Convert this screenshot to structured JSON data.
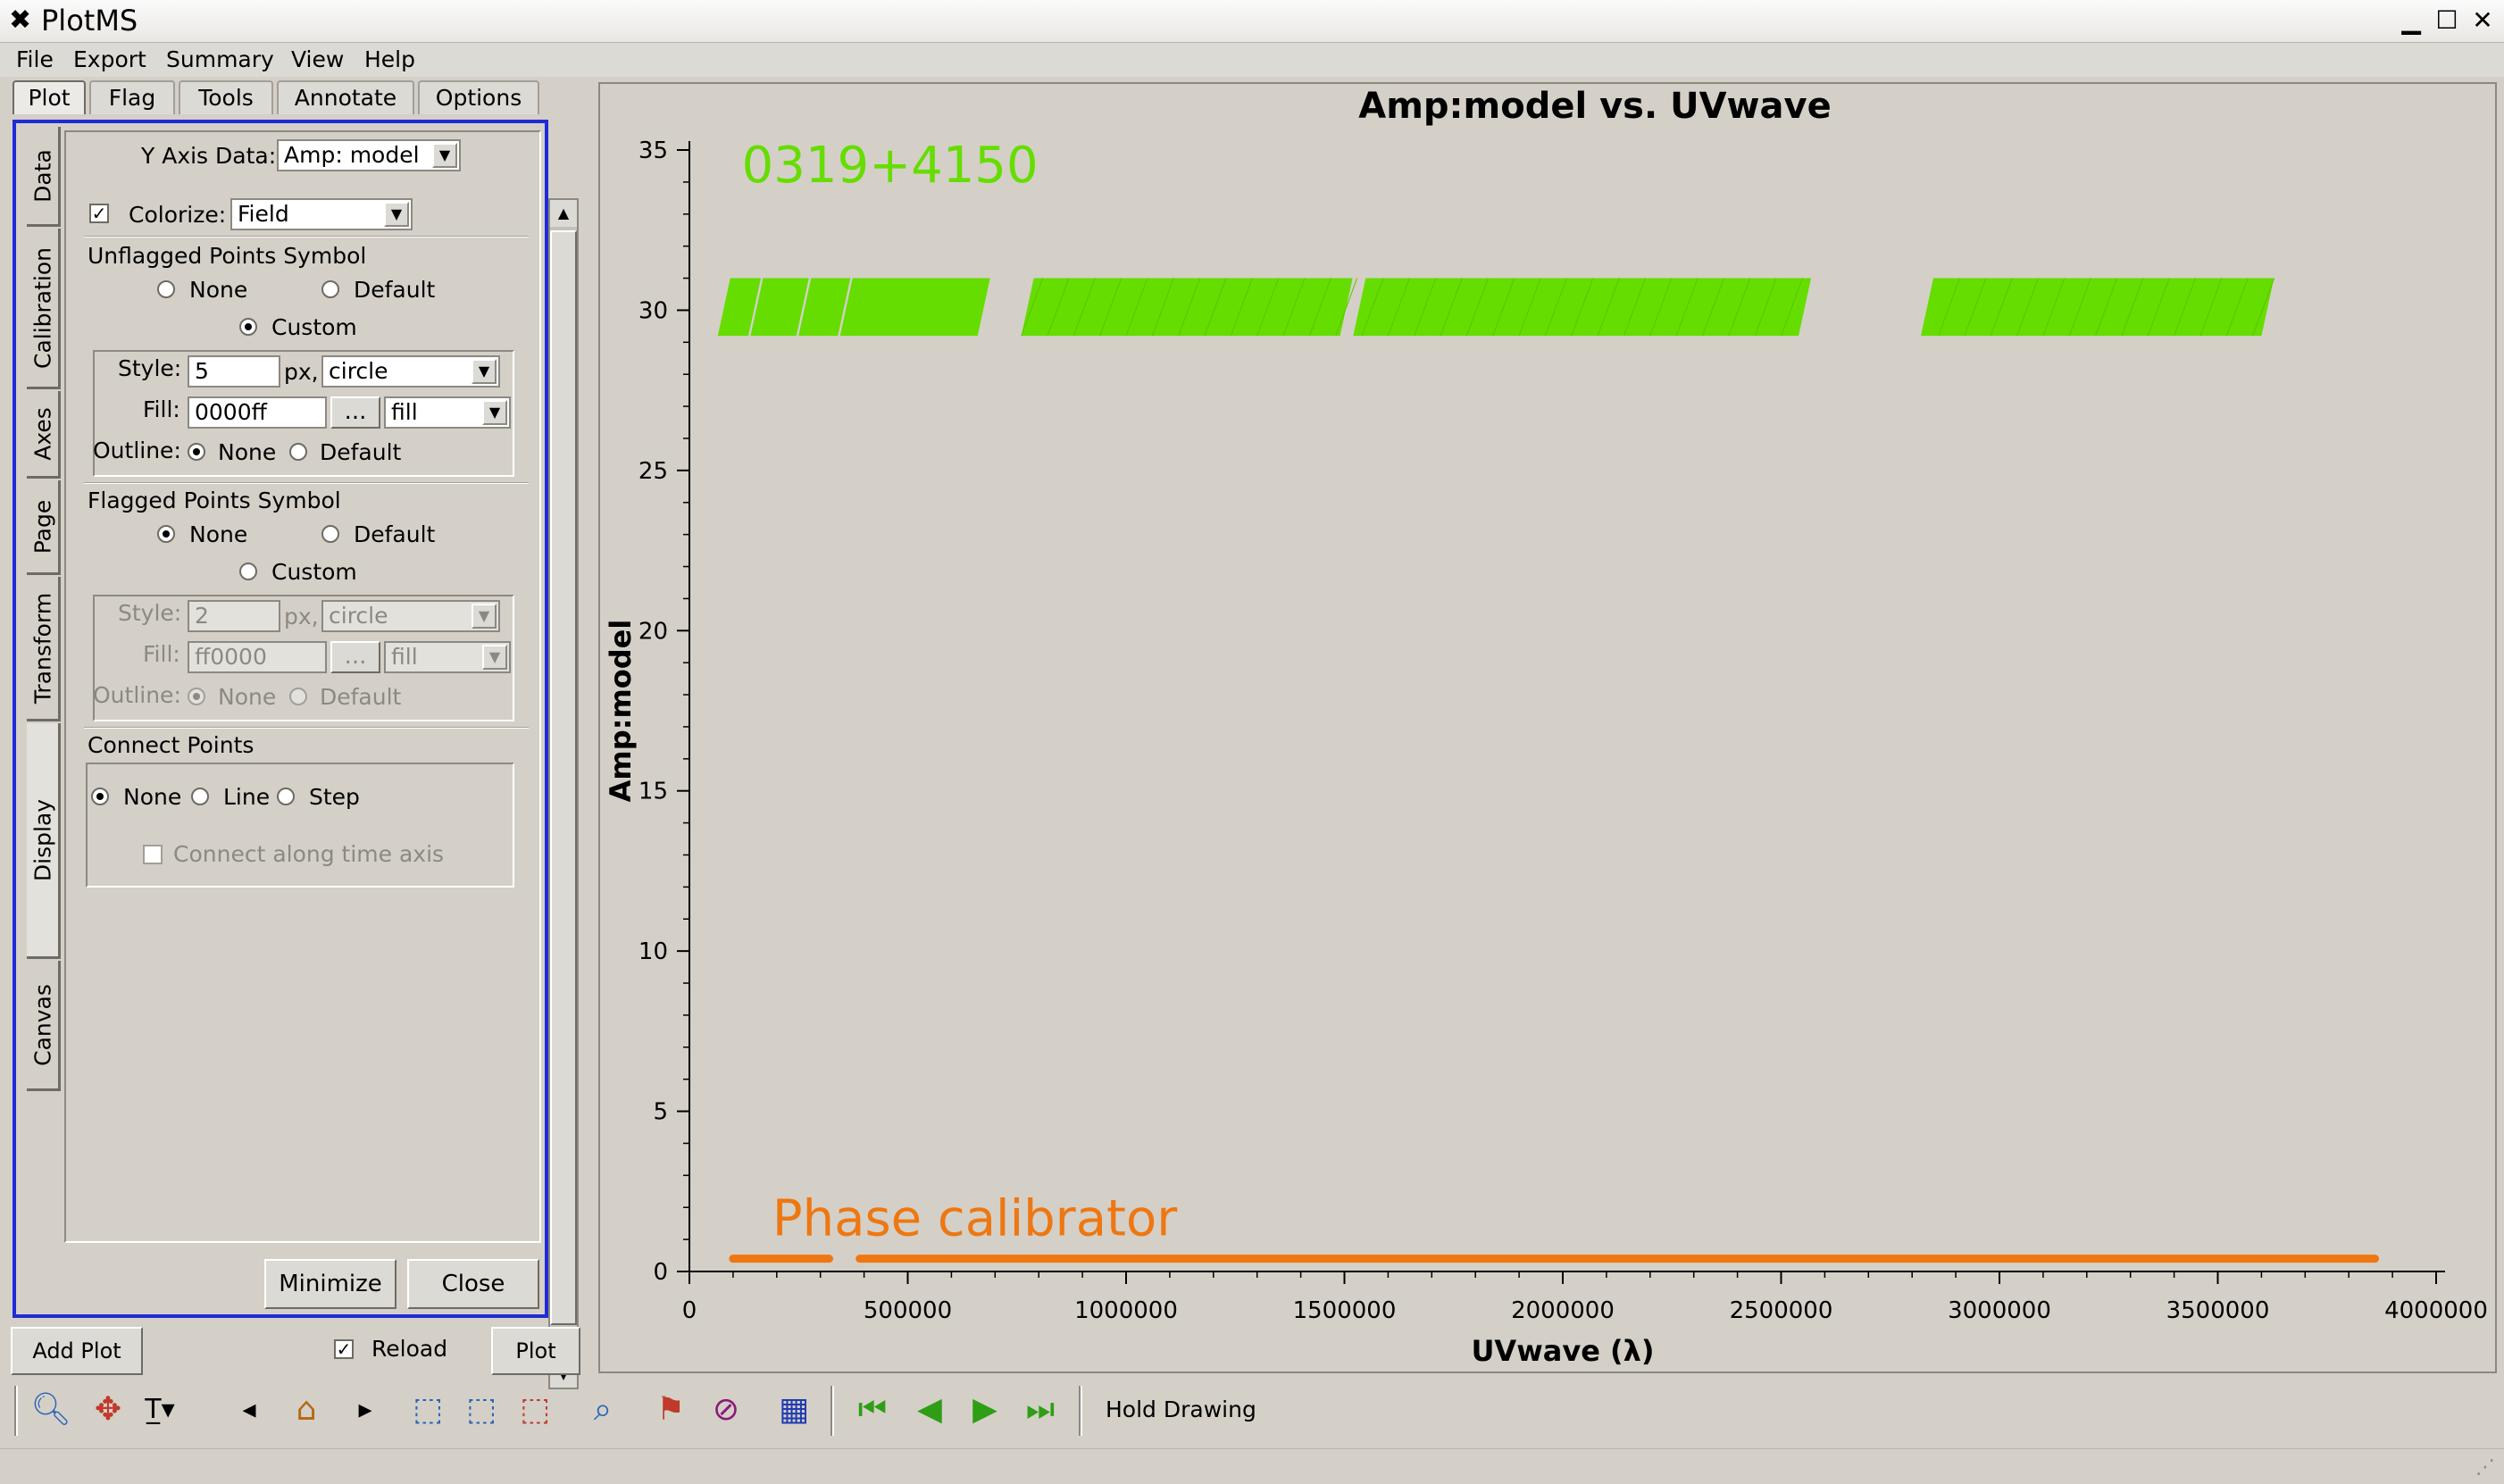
{
  "window": {
    "title": "PlotMS",
    "icon": "plotms-x-icon"
  },
  "menu": [
    "File",
    "Export",
    "Summary",
    "View",
    "Help"
  ],
  "tabs": [
    "Plot",
    "Flag",
    "Tools",
    "Annotate",
    "Options"
  ],
  "side_tabs": [
    "Data",
    "Calibration",
    "Axes",
    "Page",
    "Transform",
    "Display",
    "Canvas"
  ],
  "display": {
    "y_axis_data_label": "Y Axis Data:",
    "y_axis_data_value": "Amp: model",
    "colorize_label": "Colorize:",
    "colorize_checked": true,
    "colorize_value": "Field",
    "unflagged": {
      "title": "Unflagged Points Symbol",
      "none": "None",
      "default": "Default",
      "custom": "Custom",
      "selected": "Custom",
      "style_label": "Style:",
      "style_size": "5",
      "px": "px,",
      "style_shape": "circle",
      "fill_label": "Fill:",
      "fill_color": "0000ff",
      "dots": "...",
      "fill_mode": "fill",
      "outline_label": "Outline:",
      "outline_none": "None",
      "outline_default": "Default",
      "outline_selected": "None"
    },
    "flagged": {
      "title": "Flagged Points Symbol",
      "none": "None",
      "default": "Default",
      "custom": "Custom",
      "selected": "None",
      "style_label": "Style:",
      "style_size": "2",
      "px": "px,",
      "style_shape": "circle",
      "fill_label": "Fill:",
      "fill_color": "ff0000",
      "dots": "...",
      "fill_mode": "fill",
      "outline_label": "Outline:",
      "outline_none": "None",
      "outline_default": "Default",
      "outline_selected": "None"
    },
    "connect": {
      "title": "Connect Points",
      "none": "None",
      "line": "Line",
      "step": "Step",
      "selected": "None",
      "along_time": "Connect along time axis",
      "along_time_checked": false
    }
  },
  "buttons": {
    "minimize": "Minimize",
    "close": "Close",
    "add_plot": "Add Plot",
    "reload": "Reload",
    "reload_checked": true,
    "plot": "Plot"
  },
  "toolbar": {
    "icons": [
      "zoom-icon",
      "pan-icon",
      "annotate-text-icon",
      "prev-icon",
      "home-icon",
      "next-icon",
      "select-region-icon",
      "subtract-region-icon",
      "clear-regions-icon",
      "locate-icon",
      "flag-icon",
      "unflag-icon",
      "flag-all-icon",
      "first-iteration-icon",
      "prev-iteration-icon",
      "next-iteration-icon",
      "last-iteration-icon"
    ],
    "hold_drawing": "Hold Drawing"
  },
  "chart_data": {
    "type": "scatter",
    "title": "Amp:model vs. UVwave",
    "xlabel": "UVwave (λ)",
    "ylabel": "Amp:model",
    "xlim": [
      0,
      4000000
    ],
    "ylim": [
      0,
      35
    ],
    "xticks": [
      "0",
      "500000",
      "1000000",
      "1500000",
      "2000000",
      "2500000",
      "3000000",
      "3500000",
      "4000000"
    ],
    "yticks": [
      "0",
      "5",
      "10",
      "15",
      "20",
      "25",
      "30",
      "35"
    ],
    "series": [
      {
        "name": "0319+4150",
        "color": "#66dd00",
        "amp_range": [
          29.2,
          31.0
        ],
        "segments": [
          [
            65000,
            135000
          ],
          [
            140000,
            245000
          ],
          [
            250000,
            340000
          ],
          [
            345000,
            660000
          ],
          [
            760000,
            1490000
          ],
          [
            1520000,
            3600000
          ]
        ],
        "gaps": [
          [
            2540000,
            2820000
          ]
        ]
      },
      {
        "name": "Phase calibrator",
        "color": "#ee7711",
        "amp": 0.4,
        "segments": [
          [
            100000,
            320000
          ],
          [
            390000,
            3860000
          ]
        ]
      }
    ]
  }
}
